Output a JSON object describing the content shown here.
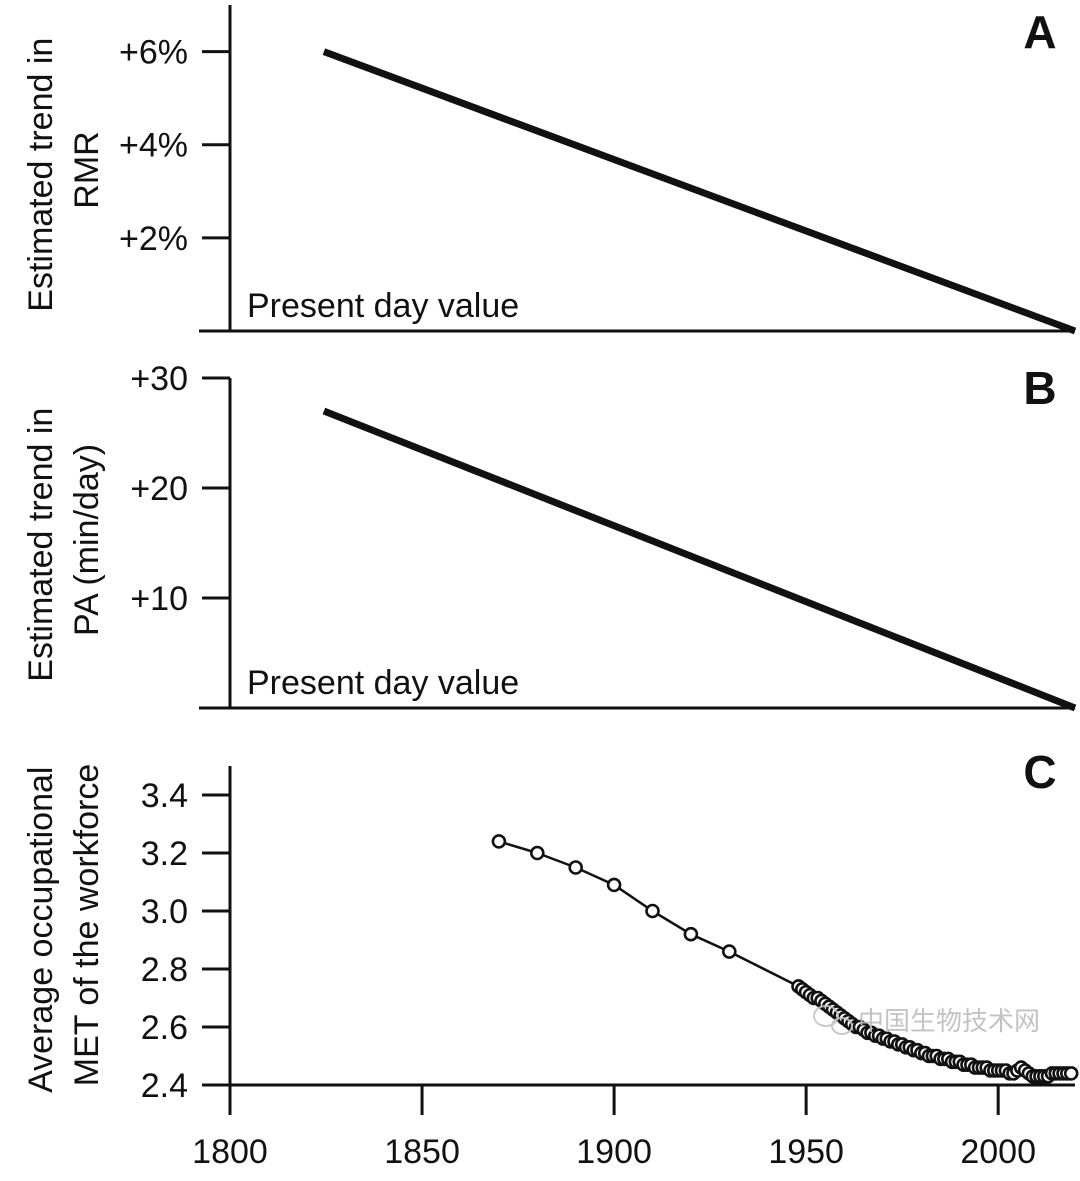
{
  "chart_data": [
    {
      "panel": "A",
      "type": "line",
      "ylabel_line1": "Estimated trend in",
      "ylabel_line2": "RMR",
      "y_ticks": [
        "+6%",
        "+4%",
        "+2%"
      ],
      "y_tick_values": [
        6,
        4,
        2
      ],
      "ylim": [
        0,
        7
      ],
      "xlim": [
        1795,
        2020
      ],
      "annotation": "Present day value",
      "series": [
        {
          "name": "RMR trend",
          "x": [
            1820,
            2020
          ],
          "values": [
            6,
            0
          ]
        }
      ]
    },
    {
      "panel": "B",
      "type": "line",
      "ylabel_line1": "Estimated trend in",
      "ylabel_line2": "PA (min/day)",
      "y_ticks": [
        "+30",
        "+20",
        "+10"
      ],
      "y_tick_values": [
        30,
        20,
        10
      ],
      "ylim": [
        0,
        30
      ],
      "xlim": [
        1795,
        2020
      ],
      "annotation": "Present day value",
      "series": [
        {
          "name": "PA trend",
          "x": [
            1820,
            2020
          ],
          "values": [
            27,
            0
          ]
        }
      ]
    },
    {
      "panel": "C",
      "type": "line",
      "ylabel_line1": "Average occupational",
      "ylabel_line2": "MET of the workforce",
      "y_ticks": [
        "3.4",
        "3.2",
        "3.0",
        "2.8",
        "2.6",
        "2.4"
      ],
      "y_tick_values": [
        3.4,
        3.2,
        3.0,
        2.8,
        2.6,
        2.4
      ],
      "ylim": [
        2.4,
        3.5
      ],
      "x_ticks": [
        "1800",
        "1850",
        "1900",
        "1950",
        "2000"
      ],
      "x_tick_values": [
        1800,
        1850,
        1900,
        1950,
        2000
      ],
      "xlim": [
        1800,
        2020
      ],
      "series": [
        {
          "name": "Average occupational MET",
          "x": [
            1870,
            1880,
            1890,
            1900,
            1910,
            1920,
            1930,
            1948,
            1949,
            1950,
            1951,
            1952,
            1953,
            1954,
            1955,
            1956,
            1957,
            1958,
            1959,
            1960,
            1961,
            1962,
            1963,
            1964,
            1965,
            1966,
            1967,
            1968,
            1969,
            1970,
            1971,
            1972,
            1973,
            1974,
            1975,
            1976,
            1977,
            1978,
            1979,
            1980,
            1981,
            1982,
            1983,
            1984,
            1985,
            1986,
            1987,
            1988,
            1989,
            1990,
            1991,
            1992,
            1993,
            1994,
            1995,
            1996,
            1997,
            1998,
            1999,
            2000,
            2001,
            2002,
            2003,
            2004,
            2005,
            2006,
            2007,
            2008,
            2009,
            2010,
            2011,
            2012,
            2013,
            2014,
            2015,
            2016,
            2017,
            2018,
            2019
          ],
          "values": [
            3.24,
            3.2,
            3.15,
            3.09,
            3.0,
            2.92,
            2.86,
            2.74,
            2.73,
            2.72,
            2.71,
            2.7,
            2.7,
            2.69,
            2.68,
            2.67,
            2.66,
            2.65,
            2.64,
            2.63,
            2.62,
            2.61,
            2.6,
            2.6,
            2.59,
            2.58,
            2.58,
            2.57,
            2.57,
            2.56,
            2.56,
            2.55,
            2.55,
            2.54,
            2.54,
            2.53,
            2.53,
            2.52,
            2.52,
            2.51,
            2.51,
            2.5,
            2.5,
            2.5,
            2.49,
            2.49,
            2.49,
            2.48,
            2.48,
            2.48,
            2.47,
            2.47,
            2.47,
            2.46,
            2.46,
            2.46,
            2.46,
            2.45,
            2.45,
            2.45,
            2.45,
            2.45,
            2.44,
            2.44,
            2.45,
            2.46,
            2.45,
            2.44,
            2.43,
            2.43,
            2.43,
            2.43,
            2.43,
            2.44,
            2.44,
            2.44,
            2.44,
            2.44,
            2.44
          ]
        }
      ]
    }
  ],
  "watermark": {
    "text": "中国生物技术网"
  }
}
